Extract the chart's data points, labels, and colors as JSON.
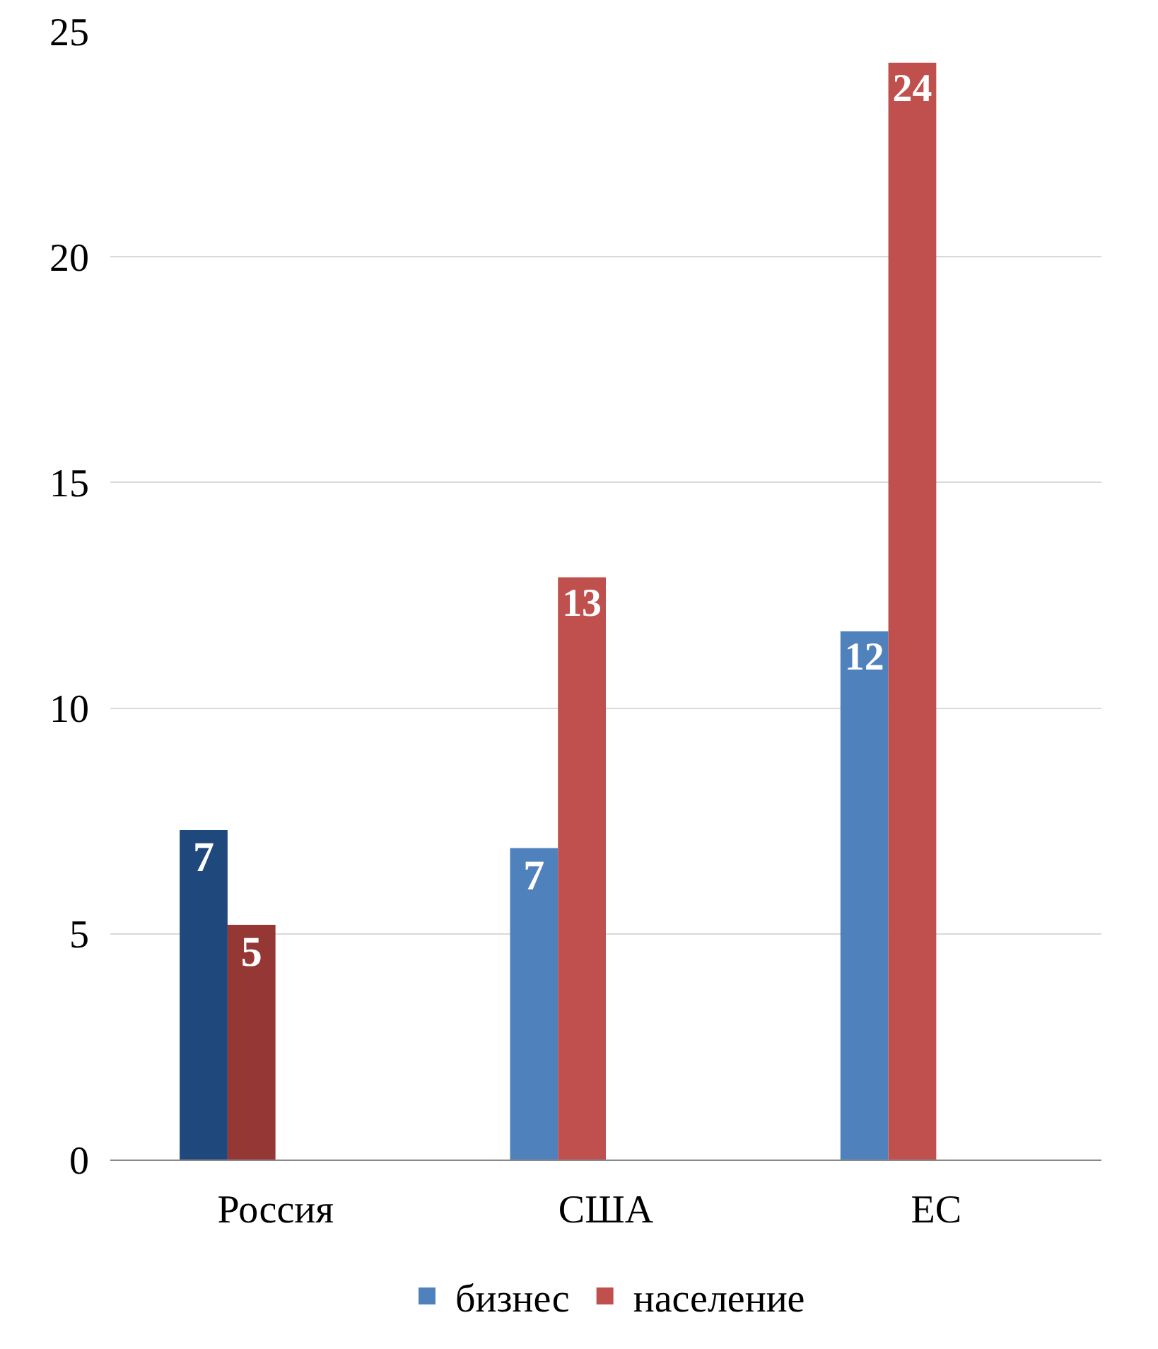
{
  "chart_data": {
    "type": "bar",
    "categories": [
      "Россия",
      "США",
      "ЕС"
    ],
    "series": [
      {
        "name": "бизнес",
        "color": "#4f81bd",
        "colors": [
          "#1f497d",
          "#4f81bd",
          "#4f81bd"
        ],
        "values": [
          7.3,
          6.9,
          11.7
        ],
        "value_labels": [
          "7",
          "7",
          "12"
        ]
      },
      {
        "name": "население",
        "color": "#c0504d",
        "colors": [
          "#953735",
          "#c0504d",
          "#c0504d"
        ],
        "values": [
          5.2,
          12.9,
          24.3
        ],
        "value_labels": [
          "5",
          "13",
          "24"
        ]
      }
    ],
    "ylim": [
      0,
      25
    ],
    "yticks": [
      0,
      5,
      10,
      15,
      20,
      25
    ],
    "grid": "y",
    "legend": "bottom"
  }
}
